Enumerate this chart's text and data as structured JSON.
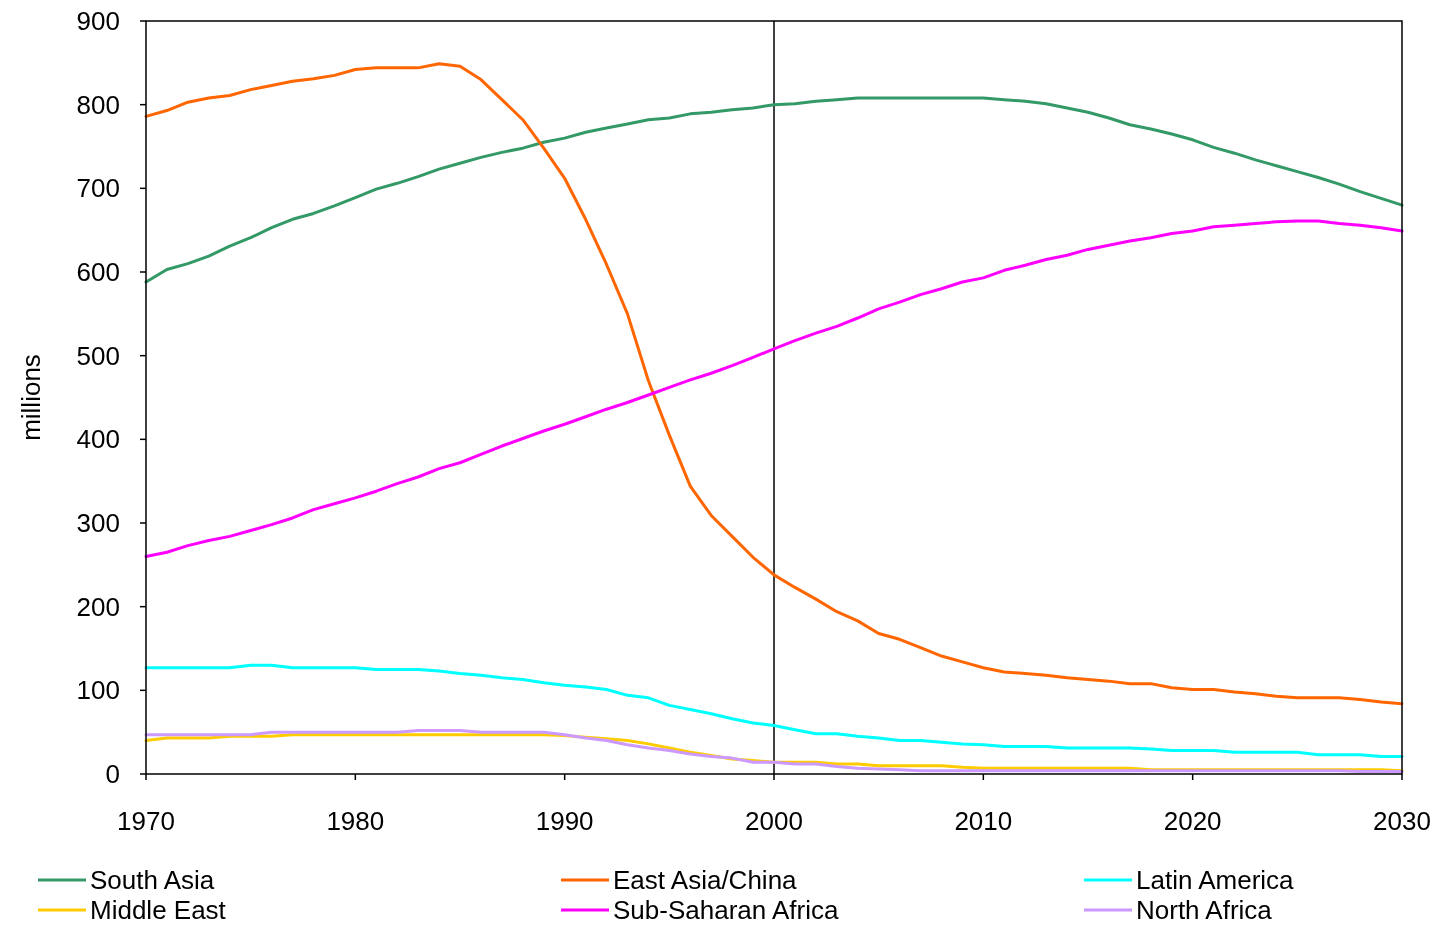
{
  "chart_data": {
    "type": "line",
    "ylabel": "millions",
    "x": [
      1970,
      1971,
      1972,
      1973,
      1974,
      1975,
      1976,
      1977,
      1978,
      1979,
      1980,
      1981,
      1982,
      1983,
      1984,
      1985,
      1986,
      1987,
      1988,
      1989,
      1990,
      1991,
      1992,
      1993,
      1994,
      1995,
      1996,
      1997,
      1998,
      1999,
      2000,
      2001,
      2002,
      2003,
      2004,
      2005,
      2006,
      2007,
      2008,
      2009,
      2010,
      2011,
      2012,
      2013,
      2014,
      2015,
      2016,
      2017,
      2018,
      2019,
      2020,
      2021,
      2022,
      2023,
      2024,
      2025,
      2026,
      2027,
      2028,
      2029,
      2030
    ],
    "xlim": [
      1970,
      2030
    ],
    "xticks": [
      1970,
      1980,
      1990,
      2000,
      2010,
      2020,
      2030
    ],
    "ylim": [
      0,
      900
    ],
    "yticks": [
      0,
      100,
      200,
      300,
      400,
      500,
      600,
      700,
      800,
      900
    ],
    "grid": false,
    "legend": "bottom",
    "line_style": "solid",
    "marker": "none",
    "ref_lines": [
      {
        "axis": "x",
        "value": 2000,
        "color": "#000000"
      }
    ],
    "series": [
      {
        "name": "South Asia",
        "color": "#339966",
        "values": [
          588,
          603,
          610,
          619,
          631,
          641,
          653,
          663,
          670,
          679,
          689,
          699,
          706,
          714,
          723,
          730,
          737,
          743,
          748,
          755,
          760,
          767,
          772,
          777,
          782,
          784,
          789,
          791,
          794,
          796,
          800,
          801,
          804,
          806,
          808,
          808,
          808,
          808,
          808,
          808,
          808,
          806,
          804,
          801,
          796,
          791,
          784,
          776,
          771,
          765,
          758,
          749,
          742,
          734,
          727,
          720,
          713,
          705,
          696,
          688,
          680
        ]
      },
      {
        "name": "East Asia/China",
        "color": "#ff6600",
        "values": [
          786,
          793,
          803,
          808,
          811,
          818,
          823,
          828,
          831,
          835,
          842,
          844,
          844,
          844,
          849,
          846,
          830,
          806,
          782,
          748,
          712,
          663,
          609,
          550,
          470,
          405,
          344,
          309,
          284,
          259,
          238,
          223,
          209,
          194,
          183,
          168,
          161,
          151,
          141,
          134,
          127,
          122,
          120,
          118,
          115,
          113,
          111,
          108,
          108,
          103,
          101,
          101,
          98,
          96,
          93,
          91,
          91,
          91,
          89,
          86,
          84
        ]
      },
      {
        "name": "Latin America",
        "color": "#00ffff",
        "values": [
          127,
          127,
          127,
          127,
          127,
          130,
          130,
          127,
          127,
          127,
          127,
          125,
          125,
          125,
          123,
          120,
          118,
          115,
          113,
          109,
          106,
          104,
          101,
          94,
          91,
          82,
          77,
          72,
          66,
          61,
          58,
          53,
          48,
          48,
          45,
          43,
          40,
          40,
          38,
          36,
          35,
          33,
          33,
          33,
          31,
          31,
          31,
          31,
          30,
          28,
          28,
          28,
          26,
          26,
          26,
          26,
          23,
          23,
          23,
          21,
          21
        ]
      },
      {
        "name": "Middle East",
        "color": "#ffcc00",
        "values": [
          40,
          43,
          43,
          43,
          45,
          45,
          45,
          47,
          47,
          47,
          47,
          47,
          47,
          47,
          47,
          47,
          47,
          47,
          47,
          47,
          46,
          44,
          42,
          40,
          36,
          31,
          26,
          22,
          18,
          16,
          14,
          14,
          14,
          12,
          12,
          10,
          10,
          10,
          10,
          8,
          7,
          7,
          7,
          7,
          7,
          7,
          7,
          7,
          5,
          5,
          5,
          5,
          5,
          5,
          5,
          5,
          5,
          5,
          5,
          5,
          4
        ]
      },
      {
        "name": "Sub-Saharan Africa",
        "color": "#ff00ff",
        "values": [
          260,
          265,
          273,
          279,
          284,
          291,
          298,
          306,
          316,
          323,
          330,
          338,
          347,
          355,
          365,
          372,
          382,
          392,
          401,
          410,
          418,
          427,
          436,
          444,
          453,
          462,
          471,
          479,
          488,
          498,
          508,
          518,
          527,
          535,
          545,
          556,
          564,
          573,
          580,
          588,
          593,
          602,
          608,
          615,
          620,
          627,
          632,
          637,
          641,
          646,
          649,
          654,
          656,
          658,
          660,
          661,
          661,
          658,
          656,
          653,
          649
        ]
      },
      {
        "name": "North Africa",
        "color": "#cc99ff",
        "values": [
          47,
          47,
          47,
          47,
          47,
          47,
          50,
          50,
          50,
          50,
          50,
          50,
          50,
          52,
          52,
          52,
          50,
          50,
          50,
          50,
          47,
          43,
          40,
          35,
          31,
          28,
          24,
          21,
          19,
          14,
          14,
          12,
          12,
          9,
          7,
          6,
          5,
          4,
          4,
          4,
          4,
          4,
          4,
          4,
          4,
          4,
          4,
          4,
          4,
          4,
          4,
          4,
          4,
          4,
          4,
          4,
          4,
          4,
          3,
          3,
          3
        ]
      }
    ]
  }
}
